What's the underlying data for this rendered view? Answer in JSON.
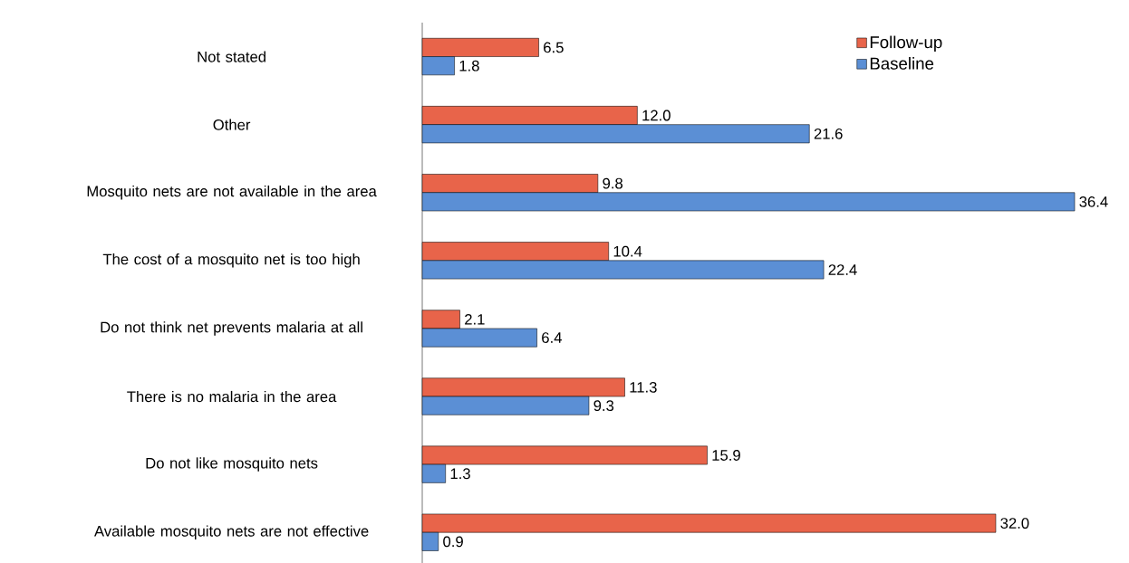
{
  "chart_data": {
    "type": "bar",
    "orientation": "horizontal",
    "legend": "top right",
    "categories": [
      "Not stated",
      "Other",
      "Mosquito nets are not available in the area",
      "The cost of a mosquito net is too high",
      "Do not think net prevents malaria at all",
      "There is no malaria in the area",
      "Do not like mosquito nets",
      "Available mosquito nets are not effective"
    ],
    "series": [
      {
        "name": "Follow-up",
        "color": "#e8644a",
        "values": [
          6.5,
          12.0,
          9.8,
          10.4,
          2.1,
          11.3,
          15.9,
          32.0
        ],
        "value_labels": [
          "6.5",
          "12.0",
          "9.8",
          "10.4",
          "2.1",
          "11.3",
          "15.9",
          "32.0"
        ]
      },
      {
        "name": "Baseline",
        "color": "#5b8fd5",
        "values": [
          1.8,
          21.6,
          36.4,
          22.4,
          6.4,
          9.3,
          1.3,
          0.9
        ],
        "value_labels": [
          "1.8",
          "21.6",
          "36.4",
          "22.4",
          "6.4",
          "9.3",
          "1.3",
          "0.9"
        ]
      }
    ]
  }
}
